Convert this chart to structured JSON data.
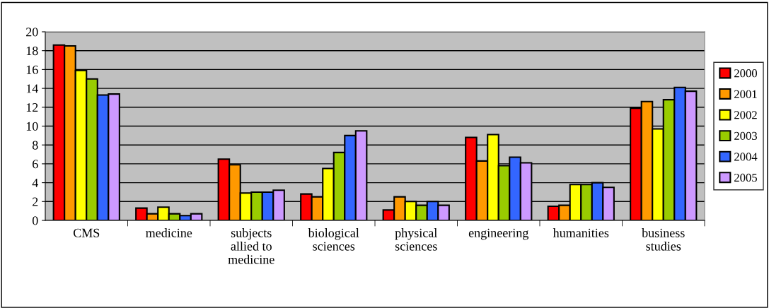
{
  "chart_data": {
    "type": "bar",
    "categories": [
      "CMS",
      "medicine",
      "subjects\nallied to\nmedicine",
      "biological\nsciences",
      "physical\nsciences",
      "engineering",
      "humanities",
      "business\nstudies"
    ],
    "series": [
      {
        "name": "2000",
        "color": "#ff0000",
        "values": [
          18.6,
          1.3,
          6.5,
          2.8,
          1.1,
          8.8,
          1.5,
          11.9
        ]
      },
      {
        "name": "2001",
        "color": "#ff9900",
        "values": [
          18.5,
          0.7,
          5.9,
          2.5,
          2.5,
          6.3,
          1.6,
          12.6
        ]
      },
      {
        "name": "2002",
        "color": "#ffff00",
        "values": [
          15.9,
          1.4,
          2.9,
          5.5,
          2.0,
          9.1,
          3.8,
          9.7
        ]
      },
      {
        "name": "2003",
        "color": "#99cc00",
        "values": [
          15.0,
          0.7,
          3.0,
          7.2,
          1.6,
          5.8,
          3.8,
          12.8
        ]
      },
      {
        "name": "2004",
        "color": "#3366ff",
        "values": [
          13.3,
          0.5,
          3.0,
          9.0,
          2.0,
          6.7,
          4.0,
          14.1
        ]
      },
      {
        "name": "2005",
        "color": "#cc99ff",
        "values": [
          13.4,
          0.7,
          3.2,
          9.5,
          1.6,
          6.1,
          3.5,
          13.7
        ]
      }
    ],
    "ylim": [
      0,
      20
    ],
    "yticks": [
      0,
      2,
      4,
      6,
      8,
      10,
      12,
      14,
      16,
      18,
      20
    ],
    "grid": "y",
    "legend": "right"
  }
}
